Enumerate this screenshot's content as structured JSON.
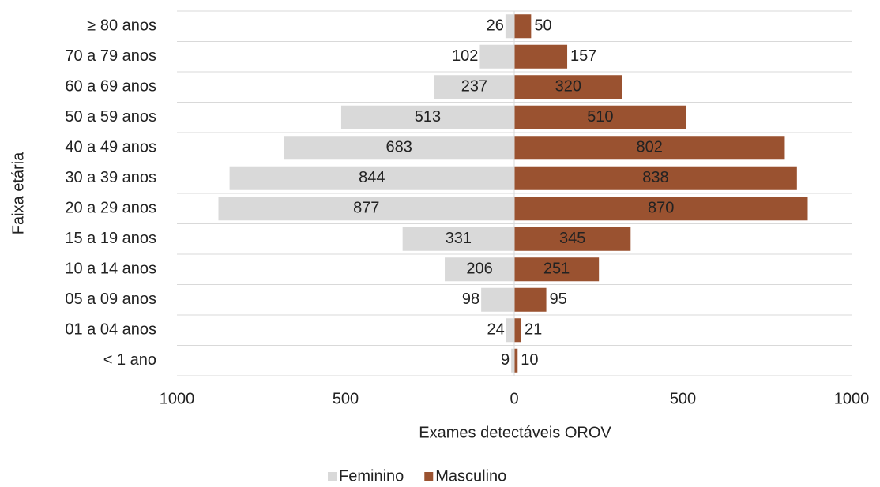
{
  "chart_data": {
    "type": "pyramid",
    "y_label": "Faixa etária",
    "x_label": "Exames detectáveis OROV",
    "categories": [
      "≥ 80 anos",
      "70 a 79 anos",
      "60 a 69 anos",
      "50 a 59 anos",
      "40 a 49 anos",
      "30 a 39 anos",
      "20 a 29 anos",
      "15 a 19 anos",
      "10 a 14 anos",
      "05 a 09 anos",
      "01 a 04 anos",
      "< 1 ano"
    ],
    "series": [
      {
        "name": "Feminino",
        "color": "#d9d9d9",
        "values": [
          -26,
          -102,
          -237,
          -513,
          -683,
          -844,
          -877,
          -331,
          -206,
          -98,
          -24,
          -9
        ],
        "value_labels": [
          "26",
          "102",
          "237",
          "513",
          "683",
          "844",
          "877",
          "331",
          "206",
          "98",
          "24",
          "9"
        ]
      },
      {
        "name": "Masculino",
        "color": "#9a5230",
        "values": [
          50,
          157,
          320,
          510,
          802,
          838,
          870,
          345,
          251,
          95,
          21,
          10
        ]
      }
    ],
    "xlim": [
      -1000,
      1000
    ],
    "xticks": [
      {
        "value": -1000,
        "label": "1000"
      },
      {
        "value": -500,
        "label": "500"
      },
      0,
      500,
      1000
    ],
    "grid": true,
    "legend": "bottom"
  }
}
